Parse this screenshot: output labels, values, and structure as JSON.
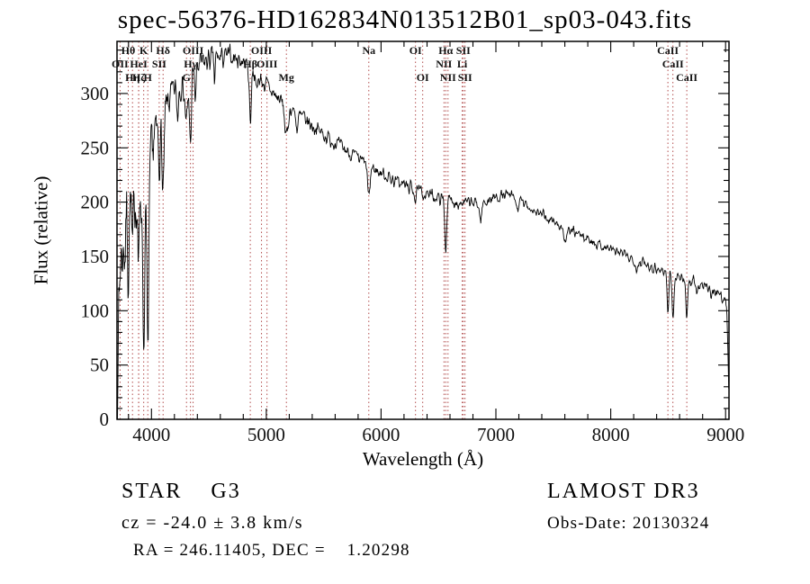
{
  "title": "spec-56376-HD162834N013512B01_sp03-043.fits",
  "footer": {
    "class_label": "STAR    G3",
    "cz_label": "cz = -24.0 ± 3.8 km/s",
    "radec_label": "RA = 246.11405, DEC =    1.20298",
    "survey_label": "LAMOST DR3",
    "obsdate_label": "Obs-Date: 20130324"
  },
  "colors": {
    "background": "#ffffff",
    "spectrum_line": "#000000",
    "marker_line": "#aa3b3b",
    "axis": "#000000",
    "text": "#111111"
  },
  "chart_data": {
    "type": "line",
    "title": "spec-56376-HD162834N013512B01_sp03-043.fits",
    "xlabel": "Wavelength (Å)",
    "ylabel": "Flux (relative)",
    "xlim": [
      3700,
      9030
    ],
    "ylim": [
      0,
      348
    ],
    "xticks": [
      4000,
      5000,
      6000,
      7000,
      8000,
      9000
    ],
    "yticks": [
      0,
      50,
      100,
      150,
      200,
      250,
      300
    ],
    "x_minor_step": 200,
    "y_minor_step": 10,
    "sample_step_angstrom": 4,
    "noise_seed": 7,
    "continuum_keypoints": [
      [
        3700,
        5
      ],
      [
        3708,
        50
      ],
      [
        3716,
        95
      ],
      [
        3726,
        140
      ],
      [
        3740,
        170
      ],
      [
        3760,
        188
      ],
      [
        3790,
        200
      ],
      [
        3820,
        205
      ],
      [
        3860,
        210
      ],
      [
        3900,
        218
      ],
      [
        3950,
        228
      ],
      [
        4000,
        248
      ],
      [
        4050,
        266
      ],
      [
        4100,
        281
      ],
      [
        4150,
        293
      ],
      [
        4200,
        302
      ],
      [
        4250,
        309
      ],
      [
        4300,
        314
      ],
      [
        4350,
        319
      ],
      [
        4400,
        324
      ],
      [
        4450,
        328
      ],
      [
        4500,
        331
      ],
      [
        4600,
        333
      ],
      [
        4700,
        334
      ],
      [
        4760,
        332
      ],
      [
        4820,
        328
      ],
      [
        4880,
        321
      ],
      [
        4940,
        314
      ],
      [
        5000,
        307
      ],
      [
        5060,
        300
      ],
      [
        5120,
        294
      ],
      [
        5180,
        289
      ],
      [
        5240,
        284
      ],
      [
        5300,
        279
      ],
      [
        5360,
        274
      ],
      [
        5420,
        269
      ],
      [
        5480,
        264
      ],
      [
        5540,
        259
      ],
      [
        5600,
        255
      ],
      [
        5660,
        250
      ],
      [
        5720,
        246
      ],
      [
        5780,
        241
      ],
      [
        5840,
        237
      ],
      [
        5900,
        233
      ],
      [
        5960,
        229
      ],
      [
        6020,
        226
      ],
      [
        6080,
        222
      ],
      [
        6140,
        219
      ],
      [
        6200,
        216
      ],
      [
        6260,
        213
      ],
      [
        6320,
        210
      ],
      [
        6380,
        208
      ],
      [
        6440,
        206
      ],
      [
        6500,
        204
      ],
      [
        6560,
        202
      ],
      [
        6620,
        201
      ],
      [
        6680,
        200
      ],
      [
        6740,
        199
      ],
      [
        6800,
        199
      ],
      [
        6860,
        199
      ],
      [
        6920,
        201
      ],
      [
        6980,
        204
      ],
      [
        7040,
        206
      ],
      [
        7100,
        206
      ],
      [
        7160,
        204
      ],
      [
        7220,
        200
      ],
      [
        7280,
        196
      ],
      [
        7340,
        192
      ],
      [
        7400,
        188
      ],
      [
        7460,
        184
      ],
      [
        7520,
        181
      ],
      [
        7580,
        177
      ],
      [
        7640,
        174
      ],
      [
        7700,
        171
      ],
      [
        7760,
        168
      ],
      [
        7820,
        165
      ],
      [
        7880,
        162
      ],
      [
        7940,
        159
      ],
      [
        8000,
        157
      ],
      [
        8060,
        154
      ],
      [
        8120,
        151
      ],
      [
        8180,
        148
      ],
      [
        8240,
        146
      ],
      [
        8300,
        143
      ],
      [
        8360,
        141
      ],
      [
        8420,
        138
      ],
      [
        8480,
        136
      ],
      [
        8540,
        134
      ],
      [
        8600,
        131
      ],
      [
        8660,
        129
      ],
      [
        8720,
        126
      ],
      [
        8780,
        123
      ],
      [
        8840,
        120
      ],
      [
        8900,
        118
      ],
      [
        8960,
        114
      ],
      [
        9000,
        111
      ],
      [
        9012,
        95
      ],
      [
        9022,
        55
      ],
      [
        9030,
        18
      ]
    ],
    "absorption_features": [
      {
        "center": 3750,
        "depth": 30,
        "width": 8
      },
      {
        "center": 3770,
        "depth": 35,
        "width": 6
      },
      {
        "center": 3798,
        "depth": 55,
        "width": 7
      },
      {
        "center": 3835,
        "depth": 65,
        "width": 7
      },
      {
        "center": 3889,
        "depth": 75,
        "width": 8
      },
      {
        "center": 3933,
        "depth": 150,
        "width": 9
      },
      {
        "center": 3969,
        "depth": 165,
        "width": 10
      },
      {
        "center": 4068,
        "depth": 35,
        "width": 7
      },
      {
        "center": 4101,
        "depth": 75,
        "width": 9
      },
      {
        "center": 4227,
        "depth": 28,
        "width": 6
      },
      {
        "center": 4305,
        "depth": 40,
        "width": 14
      },
      {
        "center": 4340,
        "depth": 60,
        "width": 8
      },
      {
        "center": 4383,
        "depth": 28,
        "width": 6
      },
      {
        "center": 4550,
        "depth": 22,
        "width": 5
      },
      {
        "center": 4861,
        "depth": 48,
        "width": 8
      },
      {
        "center": 4920,
        "depth": 18,
        "width": 5
      },
      {
        "center": 5175,
        "depth": 30,
        "width": 14
      },
      {
        "center": 5270,
        "depth": 16,
        "width": 8
      },
      {
        "center": 5893,
        "depth": 30,
        "width": 10
      },
      {
        "center": 6300,
        "depth": 10,
        "width": 6
      },
      {
        "center": 6563,
        "depth": 45,
        "width": 8
      },
      {
        "center": 6867,
        "depth": 16,
        "width": 10
      },
      {
        "center": 7186,
        "depth": 9,
        "width": 10
      },
      {
        "center": 7605,
        "depth": 12,
        "width": 14
      },
      {
        "center": 8227,
        "depth": 9,
        "width": 8
      },
      {
        "center": 8498,
        "depth": 38,
        "width": 7
      },
      {
        "center": 8542,
        "depth": 42,
        "width": 8
      },
      {
        "center": 8662,
        "depth": 32,
        "width": 8
      },
      {
        "center": 8750,
        "depth": 10,
        "width": 6
      }
    ],
    "noise_profile": [
      [
        3700,
        34
      ],
      [
        3800,
        32
      ],
      [
        3900,
        30
      ],
      [
        3990,
        24
      ],
      [
        4060,
        16
      ],
      [
        4200,
        12
      ],
      [
        4450,
        10
      ],
      [
        4800,
        8
      ],
      [
        5100,
        7
      ],
      [
        5500,
        6
      ],
      [
        6000,
        5.5
      ],
      [
        6500,
        5
      ],
      [
        7000,
        4.5
      ],
      [
        7500,
        4
      ],
      [
        8000,
        4
      ],
      [
        8500,
        4.5
      ],
      [
        9030,
        5.5
      ]
    ],
    "spectral_line_markers": [
      {
        "label": "OII",
        "wavelength": 3727,
        "row": 2
      },
      {
        "label": "Hθ",
        "wavelength": 3798,
        "row": 1
      },
      {
        "label": "Hη",
        "wavelength": 3835,
        "row": 3
      },
      {
        "label": "HeI",
        "wavelength": 3889,
        "row": 2
      },
      {
        "label": "Hζ",
        "wavelength": 3889,
        "row": 3
      },
      {
        "label": "K",
        "wavelength": 3933,
        "row": 1
      },
      {
        "label": "H",
        "wavelength": 3968,
        "row": 3
      },
      {
        "label": "SII",
        "wavelength": 4068,
        "row": 2
      },
      {
        "label": "Hδ",
        "wavelength": 4101,
        "row": 1
      },
      {
        "label": "G",
        "wavelength": 4305,
        "row": 3
      },
      {
        "label": "Hγ",
        "wavelength": 4340,
        "row": 2
      },
      {
        "label": "OIII",
        "wavelength": 4363,
        "row": 1
      },
      {
        "label": "Hβ",
        "wavelength": 4861,
        "row": 2
      },
      {
        "label": "OIII",
        "wavelength": 4959,
        "row": 1
      },
      {
        "label": "OIII",
        "wavelength": 5007,
        "row": 2
      },
      {
        "label": "Mg",
        "wavelength": 5175,
        "row": 3
      },
      {
        "label": "Na",
        "wavelength": 5893,
        "row": 1
      },
      {
        "label": "OI",
        "wavelength": 6300,
        "row": 1
      },
      {
        "label": "OI",
        "wavelength": 6363,
        "row": 3
      },
      {
        "label": "NII",
        "wavelength": 6548,
        "row": 2
      },
      {
        "label": "Hα",
        "wavelength": 6563,
        "row": 1
      },
      {
        "label": "NII",
        "wavelength": 6583,
        "row": 3
      },
      {
        "label": "Li",
        "wavelength": 6707,
        "row": 2
      },
      {
        "label": "SII",
        "wavelength": 6716,
        "row": 1
      },
      {
        "label": "SII",
        "wavelength": 6731,
        "row": 3
      },
      {
        "label": "CaII",
        "wavelength": 8498,
        "row": 1
      },
      {
        "label": "CaII",
        "wavelength": 8542,
        "row": 2
      },
      {
        "label": "CaII",
        "wavelength": 8662,
        "row": 3
      }
    ]
  }
}
